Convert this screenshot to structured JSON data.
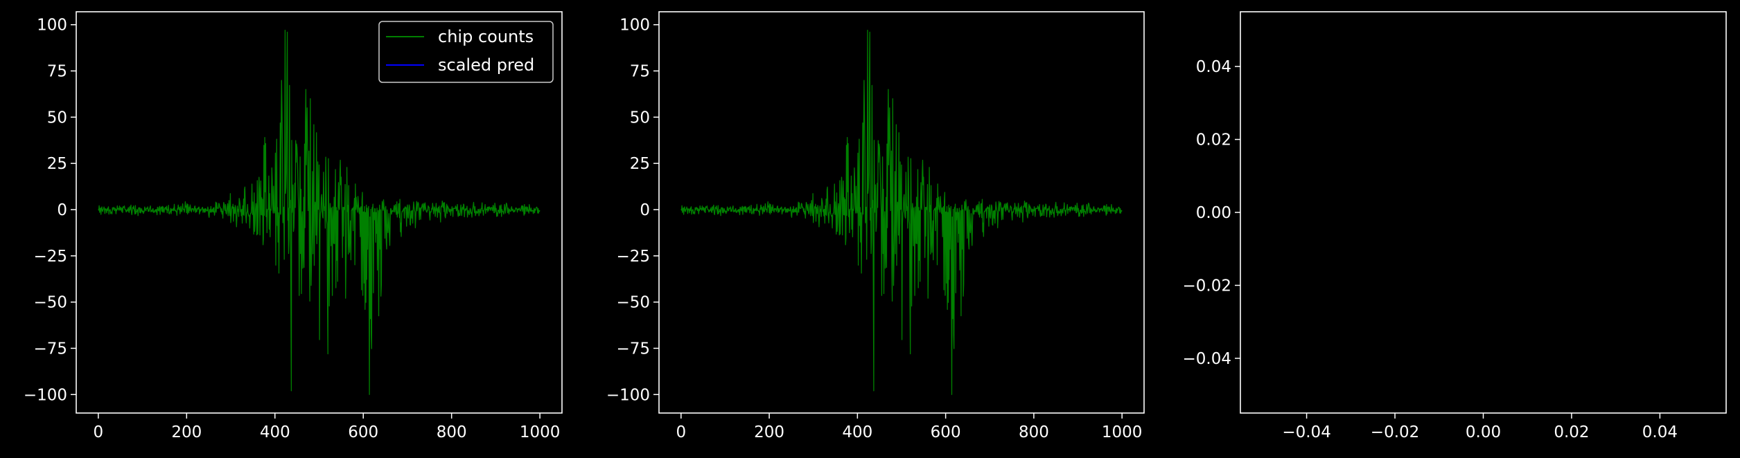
{
  "colors": {
    "background": "#000000",
    "axes": "#ffffff",
    "text": "#ffffff",
    "chip_counts": "#008000",
    "scaled_pred": "#0000ff",
    "legend_border": "#cccccc"
  },
  "chart_data": [
    {
      "type": "line",
      "title": "",
      "xlabel": "",
      "ylabel": "",
      "xlim": [
        -50,
        1050
      ],
      "ylim": [
        -110,
        107
      ],
      "xticks": [
        0,
        200,
        400,
        600,
        800,
        1000
      ],
      "xtick_labels": [
        "0",
        "200",
        "400",
        "600",
        "800",
        "1000"
      ],
      "yticks": [
        100,
        75,
        50,
        25,
        0,
        -25,
        -50,
        -75,
        -100
      ],
      "ytick_labels": [
        "100",
        "75",
        "50",
        "25",
        "0",
        "−25",
        "−50",
        "−75",
        "−100"
      ],
      "grid": false,
      "legend": {
        "placement": "upper right",
        "entries": [
          "chip counts",
          "scaled pred"
        ]
      },
      "series": [
        {
          "name": "chip counts",
          "color": "#008000",
          "description": "dense oscillating signal near 0, large positive spikes around x 350-650 (peak ~97 near x 425), large negative spikes around x 380-650 (min ~-100 near x 615)",
          "envelope": {
            "x": [
              0,
              100,
              200,
              260,
              300,
              340,
              370,
              400,
              420,
              430,
              440,
              460,
              480,
              500,
              520,
              540,
              560,
              580,
              600,
              615,
              630,
              660,
              700,
              800,
              900,
              1000
            ],
            "upper": [
              2,
              2,
              3,
              4,
              8,
              15,
              38,
              60,
              97,
              97,
              30,
              55,
              65,
              45,
              35,
              30,
              25,
              14,
              10,
              8,
              6,
              5,
              5,
              3,
              3,
              2
            ],
            "lower": [
              -2,
              -3,
              -3,
              -4,
              -8,
              -12,
              -20,
              -30,
              -60,
              -98,
              -75,
              -60,
              -50,
              -78,
              -60,
              -45,
              -55,
              -40,
              -50,
              -100,
              -65,
              -25,
              -10,
              -4,
              -3,
              -2
            ]
          }
        },
        {
          "name": "scaled pred",
          "color": "#0000ff",
          "values": []
        }
      ]
    },
    {
      "type": "line",
      "title": "",
      "xlabel": "",
      "ylabel": "",
      "xlim": [
        -50,
        1050
      ],
      "ylim": [
        -110,
        107
      ],
      "xticks": [
        0,
        200,
        400,
        600,
        800,
        1000
      ],
      "xtick_labels": [
        "0",
        "200",
        "400",
        "600",
        "800",
        "1000"
      ],
      "yticks": [
        100,
        75,
        50,
        25,
        0,
        -25,
        -50,
        -75,
        -100
      ],
      "ytick_labels": [
        "100",
        "75",
        "50",
        "25",
        "0",
        "−25",
        "−50",
        "−75",
        "−100"
      ],
      "grid": false,
      "series": [
        {
          "color": "#008000",
          "description": "same signal as the first panel",
          "envelope": {
            "x": [
              0,
              100,
              200,
              260,
              300,
              340,
              370,
              400,
              420,
              430,
              440,
              460,
              480,
              500,
              520,
              540,
              560,
              580,
              600,
              615,
              630,
              660,
              700,
              800,
              900,
              1000
            ],
            "upper": [
              2,
              2,
              3,
              4,
              8,
              15,
              38,
              60,
              97,
              97,
              30,
              55,
              65,
              45,
              35,
              30,
              25,
              14,
              10,
              8,
              6,
              5,
              5,
              3,
              3,
              2
            ],
            "lower": [
              -2,
              -3,
              -3,
              -4,
              -8,
              -12,
              -20,
              -30,
              -60,
              -98,
              -75,
              -60,
              -50,
              -78,
              -60,
              -45,
              -55,
              -40,
              -50,
              -100,
              -65,
              -25,
              -10,
              -4,
              -3,
              -2
            ]
          }
        }
      ]
    },
    {
      "type": "line",
      "title": "",
      "xlabel": "",
      "ylabel": "",
      "xlim": [
        -0.055,
        0.055
      ],
      "ylim": [
        -0.055,
        0.055
      ],
      "xticks": [
        -0.04,
        -0.02,
        0.0,
        0.02,
        0.04
      ],
      "xtick_labels": [
        "−0.04",
        "−0.02",
        "0.00",
        "0.02",
        "0.04"
      ],
      "yticks": [
        0.04,
        0.02,
        0.0,
        -0.02,
        -0.04
      ],
      "ytick_labels": [
        "0.04",
        "0.02",
        "0.00",
        "−0.02",
        "−0.04"
      ],
      "grid": false,
      "series": []
    }
  ]
}
